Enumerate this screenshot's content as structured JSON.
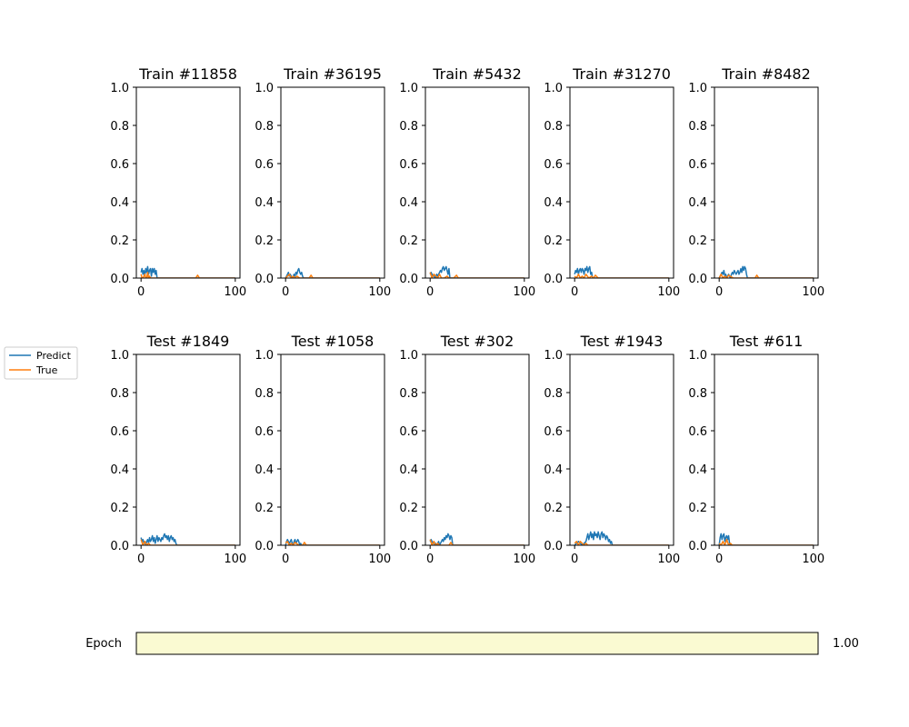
{
  "slider": {
    "label": "Epoch",
    "value_text": "1.00",
    "fill_fraction": 1.0,
    "color": "#fafad2"
  },
  "legend": {
    "placement": "left",
    "entries": [
      {
        "name": "Predict",
        "color": "#1f77b4"
      },
      {
        "name": "True",
        "color": "#ff7f0e"
      }
    ]
  },
  "chart_data": [
    {
      "type": "line",
      "title": "Train #11858",
      "xlim": [
        -5,
        105
      ],
      "ylim": [
        0,
        1
      ],
      "xticks": [
        "0",
        "100"
      ],
      "yticks": [
        "0.0",
        "0.2",
        "0.4",
        "0.6",
        "0.8",
        "1.0"
      ],
      "series": [
        {
          "name": "Predict",
          "x": [
            0,
            1,
            2,
            3,
            4,
            5,
            6,
            7,
            8,
            9,
            10,
            11,
            12,
            13,
            14,
            15,
            16,
            17,
            18,
            19,
            20,
            25,
            50,
            75,
            100
          ],
          "y": [
            0.03,
            0.05,
            0.02,
            0.04,
            0.01,
            0.05,
            0.03,
            0.06,
            0.02,
            0.04,
            0.05,
            0.01,
            0.05,
            0.03,
            0.05,
            0.02,
            0.04,
            0.0,
            0,
            0,
            0,
            0,
            0,
            0,
            0
          ]
        },
        {
          "name": "True",
          "x": [
            0,
            1,
            2,
            3,
            4,
            5,
            6,
            7,
            8,
            9,
            10,
            15,
            20,
            58,
            60,
            62,
            80,
            100
          ],
          "y": [
            0.02,
            0.0,
            0.0,
            0.01,
            0.02,
            0.0,
            0.0,
            0.03,
            0.0,
            0.01,
            0.0,
            0,
            0,
            0,
            0.015,
            0,
            0,
            0
          ]
        }
      ]
    },
    {
      "type": "line",
      "title": "Train #36195",
      "xlim": [
        -5,
        105
      ],
      "ylim": [
        0,
        1
      ],
      "xticks": [
        "0",
        "100"
      ],
      "yticks": [
        "0.0",
        "0.2",
        "0.4",
        "0.6",
        "0.8",
        "1.0"
      ],
      "series": [
        {
          "name": "Predict",
          "x": [
            0,
            2,
            3,
            4,
            5,
            6,
            7,
            8,
            9,
            10,
            11,
            12,
            13,
            14,
            15,
            16,
            17,
            18,
            19,
            20,
            25,
            50,
            75,
            100
          ],
          "y": [
            0,
            0.02,
            0.03,
            0.01,
            0.02,
            0.01,
            0.0,
            0.01,
            0.02,
            0.01,
            0.03,
            0.02,
            0.04,
            0.05,
            0.03,
            0.02,
            0.03,
            0.01,
            0.0,
            0,
            0,
            0,
            0,
            0
          ]
        },
        {
          "name": "True",
          "x": [
            0,
            2,
            4,
            6,
            8,
            10,
            12,
            15,
            20,
            25,
            27,
            29,
            40,
            60,
            80,
            100
          ],
          "y": [
            0,
            0.01,
            0.02,
            0.0,
            0.01,
            0.0,
            0.01,
            0,
            0,
            0,
            0.015,
            0,
            0,
            0,
            0,
            0
          ]
        }
      ]
    },
    {
      "type": "line",
      "title": "Train #5432",
      "xlim": [
        -5,
        105
      ],
      "ylim": [
        0,
        1
      ],
      "xticks": [
        "0",
        "100"
      ],
      "yticks": [
        "0.0",
        "0.2",
        "0.4",
        "0.6",
        "0.8",
        "1.0"
      ],
      "series": [
        {
          "name": "Predict",
          "x": [
            0,
            1,
            2,
            3,
            4,
            5,
            6,
            7,
            8,
            9,
            10,
            11,
            12,
            13,
            14,
            15,
            16,
            17,
            18,
            19,
            20,
            21,
            22,
            25,
            50,
            75,
            100
          ],
          "y": [
            0.02,
            0.03,
            0.02,
            0.01,
            0.02,
            0.0,
            0.01,
            0.02,
            0.01,
            0.02,
            0.03,
            0.04,
            0.03,
            0.05,
            0.06,
            0.04,
            0.05,
            0.06,
            0.04,
            0.02,
            0.05,
            0.0,
            0,
            0,
            0,
            0,
            0
          ]
        },
        {
          "name": "True",
          "x": [
            0,
            2,
            4,
            6,
            8,
            10,
            12,
            15,
            18,
            20,
            25,
            28,
            30,
            50,
            100
          ],
          "y": [
            0.03,
            0.0,
            0.02,
            0.01,
            0.0,
            0.02,
            0.0,
            0,
            0.01,
            0.0,
            0,
            0.015,
            0,
            0,
            0
          ]
        }
      ]
    },
    {
      "type": "line",
      "title": "Train #31270",
      "xlim": [
        -5,
        105
      ],
      "ylim": [
        0,
        1
      ],
      "xticks": [
        "0",
        "100"
      ],
      "yticks": [
        "0.0",
        "0.2",
        "0.4",
        "0.6",
        "0.8",
        "1.0"
      ],
      "series": [
        {
          "name": "Predict",
          "x": [
            0,
            1,
            2,
            3,
            4,
            5,
            6,
            7,
            8,
            9,
            10,
            11,
            12,
            13,
            14,
            15,
            16,
            17,
            18,
            19,
            20,
            25,
            50,
            75,
            100
          ],
          "y": [
            0.02,
            0.04,
            0.03,
            0.05,
            0.02,
            0.04,
            0.05,
            0.03,
            0.05,
            0.04,
            0.02,
            0.05,
            0.04,
            0.06,
            0.03,
            0.05,
            0.06,
            0.02,
            0.03,
            0.0,
            0,
            0,
            0,
            0,
            0
          ]
        },
        {
          "name": "True",
          "x": [
            0,
            2,
            4,
            6,
            8,
            10,
            12,
            15,
            18,
            20,
            22,
            25,
            50,
            100
          ],
          "y": [
            0.01,
            0.0,
            0.02,
            0.0,
            0.01,
            0.0,
            0.02,
            0,
            0.01,
            0,
            0.015,
            0,
            0,
            0
          ]
        }
      ]
    },
    {
      "type": "line",
      "title": "Train #8482",
      "xlim": [
        -5,
        105
      ],
      "ylim": [
        0,
        1
      ],
      "xticks": [
        "0",
        "100"
      ],
      "yticks": [
        "0.0",
        "0.2",
        "0.4",
        "0.6",
        "0.8",
        "1.0"
      ],
      "series": [
        {
          "name": "Predict",
          "x": [
            0,
            2,
            3,
            4,
            5,
            6,
            7,
            8,
            9,
            10,
            11,
            12,
            13,
            14,
            15,
            16,
            17,
            18,
            19,
            20,
            21,
            22,
            23,
            24,
            25,
            26,
            27,
            28,
            29,
            30,
            32,
            50,
            75,
            100
          ],
          "y": [
            0,
            0.02,
            0.03,
            0.02,
            0.04,
            0.01,
            0.02,
            0.0,
            0.01,
            0.02,
            0.01,
            0.0,
            0.02,
            0.03,
            0.02,
            0.04,
            0.03,
            0.02,
            0.03,
            0.04,
            0.02,
            0.03,
            0.05,
            0.03,
            0.06,
            0.04,
            0.06,
            0.05,
            0.02,
            0.0,
            0,
            0,
            0,
            0
          ]
        },
        {
          "name": "True",
          "x": [
            0,
            2,
            4,
            6,
            8,
            10,
            15,
            20,
            30,
            38,
            40,
            42,
            60,
            100
          ],
          "y": [
            0,
            0.02,
            0.0,
            0.01,
            0.0,
            0.015,
            0,
            0,
            0,
            0,
            0.015,
            0,
            0,
            0
          ]
        }
      ]
    },
    {
      "type": "line",
      "title": "Test #1849",
      "xlim": [
        -5,
        105
      ],
      "ylim": [
        0,
        1
      ],
      "xticks": [
        "0",
        "100"
      ],
      "yticks": [
        "0.0",
        "0.2",
        "0.4",
        "0.6",
        "0.8",
        "1.0"
      ],
      "series": [
        {
          "name": "Predict",
          "x": [
            0,
            1,
            2,
            3,
            4,
            5,
            6,
            7,
            8,
            9,
            10,
            11,
            12,
            13,
            14,
            15,
            16,
            17,
            18,
            19,
            20,
            21,
            22,
            23,
            24,
            25,
            26,
            27,
            28,
            29,
            30,
            31,
            32,
            33,
            34,
            35,
            36,
            37,
            38,
            40,
            60,
            80,
            100
          ],
          "y": [
            0.04,
            0.02,
            0.03,
            0.01,
            0.02,
            0.0,
            0.02,
            0.03,
            0.01,
            0.04,
            0.02,
            0.03,
            0.05,
            0.02,
            0.04,
            0.01,
            0.03,
            0.05,
            0.02,
            0.04,
            0.03,
            0.02,
            0.04,
            0.03,
            0.05,
            0.06,
            0.04,
            0.05,
            0.03,
            0.05,
            0.02,
            0.04,
            0.05,
            0.03,
            0.04,
            0.02,
            0.03,
            0.01,
            0.0,
            0,
            0,
            0,
            0
          ]
        },
        {
          "name": "True",
          "x": [
            0,
            2,
            4,
            6,
            8,
            10,
            15,
            20,
            40,
            60,
            100
          ],
          "y": [
            0.03,
            0.0,
            0.02,
            0.0,
            0.01,
            0.0,
            0,
            0,
            0,
            0,
            0
          ]
        }
      ]
    },
    {
      "type": "line",
      "title": "Test #1058",
      "xlim": [
        -5,
        105
      ],
      "ylim": [
        0,
        1
      ],
      "xticks": [
        "0",
        "100"
      ],
      "yticks": [
        "0.0",
        "0.2",
        "0.4",
        "0.6",
        "0.8",
        "1.0"
      ],
      "series": [
        {
          "name": "Predict",
          "x": [
            0,
            1,
            2,
            3,
            4,
            5,
            6,
            7,
            8,
            9,
            10,
            11,
            12,
            13,
            14,
            15,
            16,
            17,
            18,
            20,
            40,
            60,
            80,
            100
          ],
          "y": [
            0.0,
            0.02,
            0.03,
            0.02,
            0.01,
            0.02,
            0.03,
            0.01,
            0.0,
            0.02,
            0.03,
            0.01,
            0.02,
            0.03,
            0.02,
            0.0,
            0.01,
            0.0,
            0,
            0,
            0,
            0,
            0,
            0
          ]
        },
        {
          "name": "True",
          "x": [
            0,
            2,
            4,
            6,
            8,
            10,
            14,
            18,
            20,
            22,
            24,
            40,
            100
          ],
          "y": [
            0.01,
            0.02,
            0.0,
            0.01,
            0.0,
            0.015,
            0,
            0,
            0.015,
            0,
            0,
            0,
            0
          ]
        }
      ]
    },
    {
      "type": "line",
      "title": "Test #302",
      "xlim": [
        -5,
        105
      ],
      "ylim": [
        0,
        1
      ],
      "xticks": [
        "0",
        "100"
      ],
      "yticks": [
        "0.0",
        "0.2",
        "0.4",
        "0.6",
        "0.8",
        "1.0"
      ],
      "series": [
        {
          "name": "Predict",
          "x": [
            0,
            1,
            2,
            3,
            4,
            5,
            6,
            7,
            8,
            9,
            10,
            11,
            12,
            13,
            14,
            15,
            16,
            17,
            18,
            19,
            20,
            21,
            22,
            23,
            24,
            25,
            40,
            60,
            100
          ],
          "y": [
            0.02,
            0.03,
            0.02,
            0.01,
            0.02,
            0.0,
            0.01,
            0.0,
            0.01,
            0.02,
            0.0,
            0.01,
            0.02,
            0.03,
            0.02,
            0.04,
            0.03,
            0.05,
            0.04,
            0.06,
            0.05,
            0.03,
            0.05,
            0.04,
            0.0,
            0,
            0,
            0,
            0
          ]
        },
        {
          "name": "True",
          "x": [
            0,
            2,
            4,
            6,
            8,
            10,
            15,
            20,
            22,
            24,
            30,
            100
          ],
          "y": [
            0.03,
            0.0,
            0.02,
            0.0,
            0.01,
            0.0,
            0,
            0,
            0.015,
            0,
            0,
            0
          ]
        }
      ]
    },
    {
      "type": "line",
      "title": "Test #1943",
      "xlim": [
        -5,
        105
      ],
      "ylim": [
        0,
        1
      ],
      "xticks": [
        "0",
        "100"
      ],
      "yticks": [
        "0.0",
        "0.2",
        "0.4",
        "0.6",
        "0.8",
        "1.0"
      ],
      "series": [
        {
          "name": "Predict",
          "x": [
            0,
            2,
            4,
            6,
            8,
            10,
            12,
            13,
            14,
            15,
            16,
            17,
            18,
            19,
            20,
            21,
            22,
            23,
            24,
            25,
            26,
            27,
            28,
            29,
            30,
            31,
            32,
            33,
            34,
            35,
            36,
            37,
            38,
            39,
            40,
            50,
            75,
            100
          ],
          "y": [
            0,
            0.01,
            0.02,
            0.01,
            0.0,
            0.01,
            0.02,
            0.04,
            0.06,
            0.03,
            0.05,
            0.07,
            0.04,
            0.06,
            0.03,
            0.07,
            0.05,
            0.06,
            0.04,
            0.07,
            0.05,
            0.03,
            0.06,
            0.07,
            0.04,
            0.06,
            0.05,
            0.03,
            0.05,
            0.04,
            0.02,
            0.03,
            0.01,
            0.02,
            0.0,
            0,
            0,
            0
          ]
        },
        {
          "name": "True",
          "x": [
            0,
            2,
            4,
            6,
            8,
            10,
            12,
            14,
            20,
            40,
            100
          ],
          "y": [
            0.01,
            0.02,
            0.0,
            0.02,
            0.01,
            0.0,
            0.01,
            0,
            0,
            0,
            0
          ]
        }
      ]
    },
    {
      "type": "line",
      "title": "Test #611",
      "xlim": [
        -5,
        105
      ],
      "ylim": [
        0,
        1
      ],
      "xticks": [
        "0",
        "100"
      ],
      "yticks": [
        "0.0",
        "0.2",
        "0.4",
        "0.6",
        "0.8",
        "1.0"
      ],
      "series": [
        {
          "name": "Predict",
          "x": [
            0,
            1,
            2,
            3,
            4,
            5,
            6,
            7,
            8,
            9,
            10,
            11,
            12,
            13,
            20,
            40,
            60,
            80,
            100
          ],
          "y": [
            0.0,
            0.04,
            0.06,
            0.03,
            0.05,
            0.06,
            0.02,
            0.04,
            0.05,
            0.03,
            0.05,
            0.01,
            0.0,
            0,
            0,
            0,
            0,
            0,
            0
          ]
        },
        {
          "name": "True",
          "x": [
            0,
            2,
            4,
            6,
            8,
            10,
            12,
            14,
            20,
            100
          ],
          "y": [
            0.01,
            0.0,
            0.02,
            0.0,
            0.03,
            0.0,
            0.01,
            0,
            0,
            0
          ]
        }
      ]
    }
  ]
}
